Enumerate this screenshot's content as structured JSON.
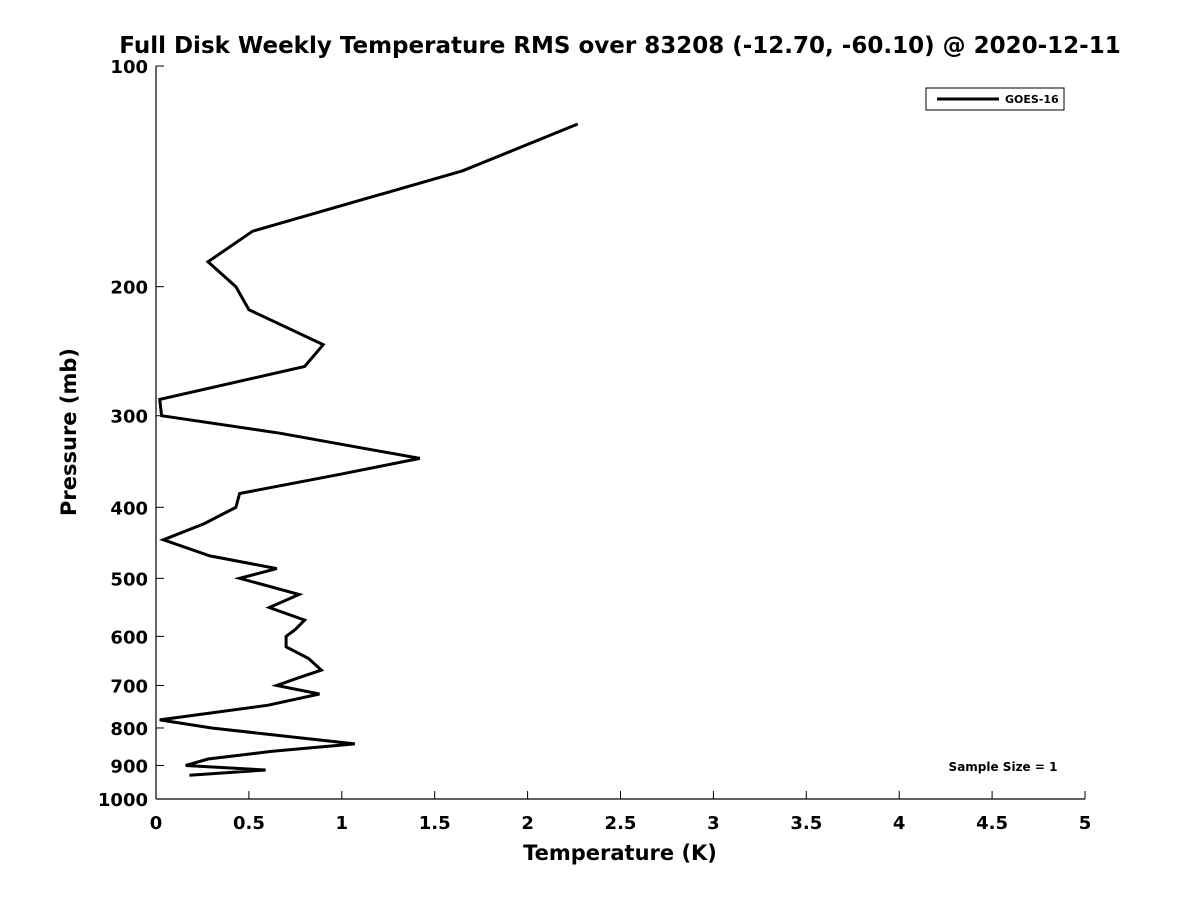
{
  "chart_data": {
    "type": "line",
    "title": "Full Disk Weekly Temperature RMS over 83208 (-12.70, -60.10) @ 2020-12-11",
    "xlabel": "Temperature (K)",
    "ylabel": "Pressure (mb)",
    "xlim": [
      0,
      5
    ],
    "ylim": [
      100,
      1000
    ],
    "y_scale": "log",
    "y_reversed": true,
    "x_ticks": [
      "0",
      "0.5",
      "1",
      "1.5",
      "2",
      "2.5",
      "3",
      "3.5",
      "4",
      "4.5",
      "5"
    ],
    "y_ticks": [
      "100",
      "200",
      "300",
      "400",
      "500",
      "600",
      "700",
      "800",
      "900",
      "1000"
    ],
    "grid": false,
    "legend_position": "top-right",
    "annotation": "Sample Size = 1",
    "series": [
      {
        "name": "GOES-16",
        "color": "#000000",
        "points": [
          {
            "x": 2.27,
            "p": 120
          },
          {
            "x": 1.65,
            "p": 139
          },
          {
            "x": 0.52,
            "p": 168
          },
          {
            "x": 0.28,
            "p": 185
          },
          {
            "x": 0.43,
            "p": 200
          },
          {
            "x": 0.5,
            "p": 215
          },
          {
            "x": 0.9,
            "p": 240
          },
          {
            "x": 0.8,
            "p": 257
          },
          {
            "x": 0.02,
            "p": 285
          },
          {
            "x": 0.03,
            "p": 300
          },
          {
            "x": 0.67,
            "p": 317
          },
          {
            "x": 1.42,
            "p": 343
          },
          {
            "x": 0.98,
            "p": 361
          },
          {
            "x": 0.45,
            "p": 383
          },
          {
            "x": 0.43,
            "p": 400
          },
          {
            "x": 0.26,
            "p": 421
          },
          {
            "x": 0.04,
            "p": 443
          },
          {
            "x": 0.29,
            "p": 466
          },
          {
            "x": 0.65,
            "p": 485
          },
          {
            "x": 0.45,
            "p": 500
          },
          {
            "x": 0.77,
            "p": 526
          },
          {
            "x": 0.61,
            "p": 548
          },
          {
            "x": 0.8,
            "p": 570
          },
          {
            "x": 0.75,
            "p": 587
          },
          {
            "x": 0.7,
            "p": 600
          },
          {
            "x": 0.7,
            "p": 620
          },
          {
            "x": 0.82,
            "p": 643
          },
          {
            "x": 0.89,
            "p": 667
          },
          {
            "x": 0.77,
            "p": 683
          },
          {
            "x": 0.65,
            "p": 700
          },
          {
            "x": 0.88,
            "p": 719
          },
          {
            "x": 0.6,
            "p": 745
          },
          {
            "x": 0.02,
            "p": 780
          },
          {
            "x": 0.3,
            "p": 800
          },
          {
            "x": 1.07,
            "p": 841
          },
          {
            "x": 0.62,
            "p": 861
          },
          {
            "x": 0.28,
            "p": 882
          },
          {
            "x": 0.16,
            "p": 900
          },
          {
            "x": 0.59,
            "p": 913
          },
          {
            "x": 0.18,
            "p": 928
          }
        ]
      }
    ]
  }
}
